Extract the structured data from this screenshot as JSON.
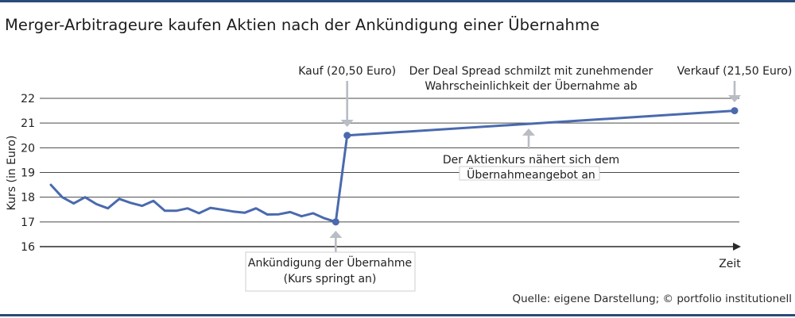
{
  "title": "Merger-Arbitrageure kaufen Aktien nach der Ankündigung einer Übernahme",
  "source": "Quelle: eigene Darstellung; © portfolio institutionell",
  "colors": {
    "line": "#4a6aae",
    "grid": "#4a4a4a",
    "arrow": "#b9bdc4",
    "rule": "#2b4a7a"
  },
  "chart_data": {
    "type": "line",
    "title": "Merger-Arbitrageure kaufen Aktien nach der Ankündigung einer Übernahme",
    "xlabel": "Zeit",
    "ylabel": "Kurs (in Euro)",
    "ylim": [
      16,
      22
    ],
    "yticks": [
      "16",
      "17",
      "18",
      "19",
      "20",
      "21",
      "22"
    ],
    "grid": true,
    "x": [
      0,
      1,
      2,
      3,
      4,
      5,
      6,
      7,
      8,
      9,
      10,
      11,
      12,
      13,
      14,
      15,
      16,
      17,
      18,
      19,
      20,
      21,
      22,
      23,
      24,
      25,
      26,
      27,
      28,
      29,
      30,
      31,
      32,
      33,
      34,
      35,
      36,
      37,
      38,
      39,
      40,
      41,
      42,
      43,
      44,
      45,
      46,
      47,
      48,
      49,
      50,
      51,
      52,
      53,
      54,
      55,
      56,
      57,
      58,
      59,
      60
    ],
    "series": [
      {
        "values": [
          18.5,
          18.0,
          17.75,
          18.0,
          17.72,
          17.55,
          17.93,
          17.77,
          17.65,
          17.85,
          17.45,
          17.45,
          17.55,
          17.35,
          17.57,
          17.5,
          17.42,
          17.37,
          17.55,
          17.3,
          17.31,
          17.4,
          17.23,
          17.35,
          17.15,
          17.0,
          20.5,
          null,
          null,
          null,
          null,
          null,
          null,
          null,
          null,
          null,
          null,
          null,
          null,
          null,
          null,
          null,
          null,
          null,
          null,
          null,
          null,
          null,
          null,
          null,
          null,
          null,
          null,
          null,
          null,
          null,
          null,
          null,
          null,
          null,
          21.5
        ]
      }
    ],
    "markers": [
      {
        "label": "Ankündigung",
        "x": 25,
        "y": 17.0
      },
      {
        "label": "Kauf",
        "x": 26,
        "y": 20.5
      },
      {
        "label": "Verkauf",
        "x": 60,
        "y": 21.5
      }
    ],
    "annotations": {
      "kauf": "Kauf (20,50 Euro)",
      "verkauf": "Verkauf (21,50 Euro)",
      "spread_line1": "Der Deal Spread schmilzt mit zunehmender",
      "spread_line2": "Wahrscheinlichkeit der Übernahme ab",
      "approach_line1": "Der Aktienkurs nähert sich dem",
      "approach_line2": "Übernahmeangebot an",
      "announce_line1": "Ankündigung der Übernahme",
      "announce_line2": "(Kurs springt an)"
    }
  }
}
